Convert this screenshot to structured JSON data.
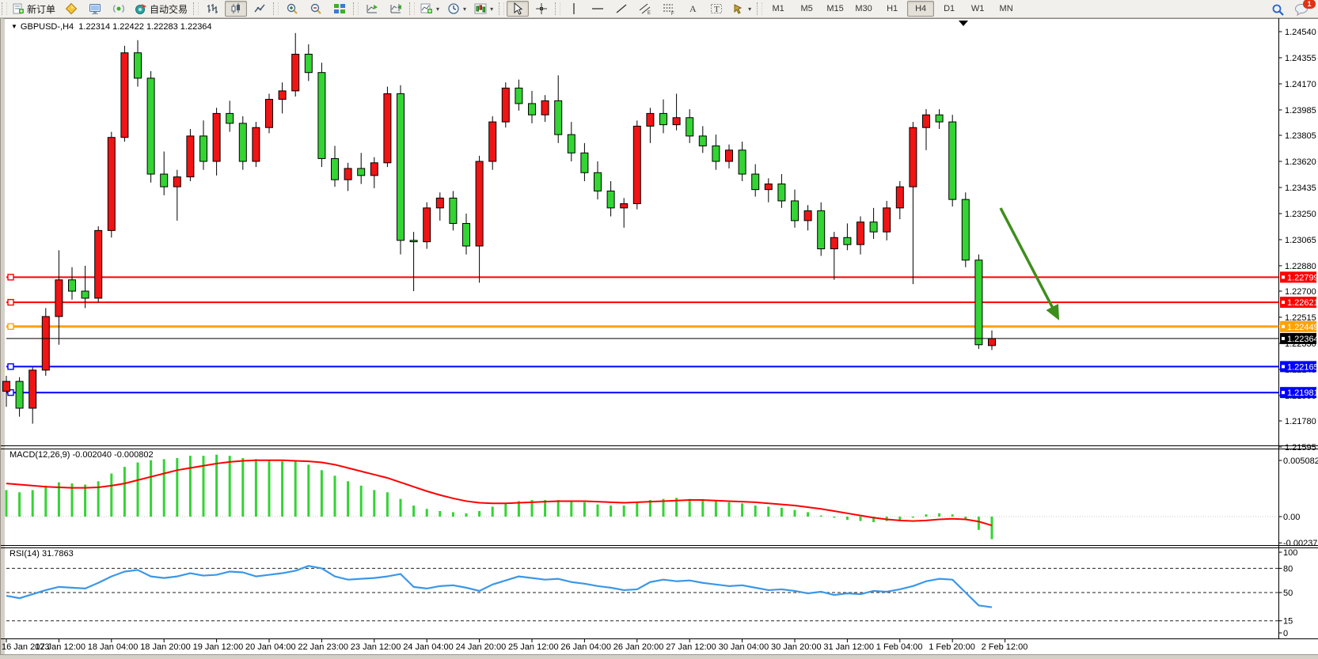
{
  "toolbar": {
    "new_order": "新订单",
    "auto_trading": "自动交易",
    "timeframes": [
      "M1",
      "M5",
      "M15",
      "M30",
      "H1",
      "H4",
      "D1",
      "W1",
      "MN"
    ],
    "active_timeframe": "H4",
    "notification_badge": "1",
    "dropdown_marker": "▾"
  },
  "quote_bar": {
    "dropdown_marker": "▼",
    "symbol": "GBPUSD-,H4",
    "open": "1.22314",
    "high": "1.22422",
    "low": "1.22283",
    "close": "1.22364"
  },
  "colors": {
    "bull": "#f01414",
    "bear": "#33d433",
    "wick": "#000000",
    "macd_hist": "#33d433",
    "macd_signal": "#ff0000",
    "rsi_line": "#3b97e8",
    "hline_red": "#ff0000",
    "hline_orange": "#ffa200",
    "hline_blue": "#0000ff",
    "price_line": "#000000",
    "arrow": "#3e8e1c"
  },
  "chart_data": {
    "type": "candlestick",
    "symbol": "GBPUSD",
    "period": "H4",
    "note": "red body = bullish, green body = bearish (Chinese convention)",
    "price_axis_ticks": [
      "1.24540",
      "1.24355",
      "1.24170",
      "1.23985",
      "1.23805",
      "1.23620",
      "1.23435",
      "1.23250",
      "1.23065",
      "1.22880",
      "1.22700",
      "1.22515",
      "1.22330",
      "1.22145",
      "1.21960",
      "1.21780",
      "1.21595"
    ],
    "price_range": {
      "top": 1.2454,
      "bottom": 1.21595
    },
    "candles": [
      [
        1.2199,
        1.221,
        1.2188,
        1.2206
      ],
      [
        1.2206,
        1.2209,
        1.2181,
        1.2187
      ],
      [
        1.2187,
        1.2216,
        1.2176,
        1.2214
      ],
      [
        1.2214,
        1.2258,
        1.221,
        1.2252
      ],
      [
        1.2252,
        1.2299,
        1.2232,
        1.2278
      ],
      [
        1.2278,
        1.2287,
        1.2264,
        1.227
      ],
      [
        1.227,
        1.2288,
        1.2258,
        1.2265
      ],
      [
        1.2265,
        1.2316,
        1.2262,
        1.2313
      ],
      [
        1.2313,
        1.2383,
        1.2308,
        1.2379
      ],
      [
        1.2379,
        1.2444,
        1.2376,
        1.2439
      ],
      [
        1.2439,
        1.2448,
        1.2415,
        1.2421
      ],
      [
        1.2421,
        1.2426,
        1.2347,
        1.2353
      ],
      [
        1.2353,
        1.2369,
        1.2338,
        1.2344
      ],
      [
        1.2344,
        1.2356,
        1.232,
        1.2351
      ],
      [
        1.2351,
        1.2385,
        1.2348,
        1.238
      ],
      [
        1.238,
        1.2391,
        1.2356,
        1.2362
      ],
      [
        1.2362,
        1.24,
        1.2352,
        1.2396
      ],
      [
        1.2396,
        1.2405,
        1.2383,
        1.2389
      ],
      [
        1.2389,
        1.2394,
        1.2356,
        1.2362
      ],
      [
        1.2362,
        1.239,
        1.2358,
        1.2386
      ],
      [
        1.2386,
        1.241,
        1.2382,
        1.2406
      ],
      [
        1.2406,
        1.2418,
        1.2396,
        1.2412
      ],
      [
        1.2412,
        1.2453,
        1.2408,
        1.2438
      ],
      [
        1.2438,
        1.2445,
        1.2419,
        1.2425
      ],
      [
        1.2425,
        1.2432,
        1.2358,
        1.2364
      ],
      [
        1.2364,
        1.2373,
        1.2344,
        1.2349
      ],
      [
        1.2349,
        1.2361,
        1.2341,
        1.2357
      ],
      [
        1.2357,
        1.2368,
        1.2346,
        1.2352
      ],
      [
        1.2352,
        1.2365,
        1.2343,
        1.2361
      ],
      [
        1.2361,
        1.2415,
        1.2358,
        1.241
      ],
      [
        1.241,
        1.2416,
        1.2296,
        1.2306
      ],
      [
        1.2306,
        1.2312,
        1.227,
        1.2305
      ],
      [
        1.2305,
        1.2333,
        1.23,
        1.2329
      ],
      [
        1.2329,
        1.234,
        1.232,
        1.2336
      ],
      [
        1.2336,
        1.2341,
        1.2313,
        1.2318
      ],
      [
        1.2318,
        1.2325,
        1.2296,
        1.2302
      ],
      [
        1.2302,
        1.2366,
        1.2276,
        1.2362
      ],
      [
        1.2362,
        1.2394,
        1.2356,
        1.239
      ],
      [
        1.239,
        1.2418,
        1.2386,
        1.2414
      ],
      [
        1.2414,
        1.242,
        1.2398,
        1.2403
      ],
      [
        1.2403,
        1.2412,
        1.2389,
        1.2395
      ],
      [
        1.2395,
        1.2409,
        1.239,
        1.2405
      ],
      [
        1.2405,
        1.2423,
        1.2375,
        1.2381
      ],
      [
        1.2381,
        1.239,
        1.2362,
        1.2368
      ],
      [
        1.2368,
        1.2375,
        1.2348,
        1.2354
      ],
      [
        1.2354,
        1.2362,
        1.2335,
        1.2341
      ],
      [
        1.2341,
        1.2348,
        1.2323,
        1.2329
      ],
      [
        1.2329,
        1.2336,
        1.2315,
        1.2332
      ],
      [
        1.2332,
        1.2391,
        1.2328,
        1.2387
      ],
      [
        1.2387,
        1.24,
        1.2375,
        1.2396
      ],
      [
        1.2396,
        1.2406,
        1.2382,
        1.2388
      ],
      [
        1.2388,
        1.241,
        1.2384,
        1.2393
      ],
      [
        1.2393,
        1.2399,
        1.2375,
        1.238
      ],
      [
        1.238,
        1.2387,
        1.2368,
        1.2373
      ],
      [
        1.2373,
        1.2381,
        1.2356,
        1.2362
      ],
      [
        1.2362,
        1.2374,
        1.2357,
        1.237
      ],
      [
        1.237,
        1.2376,
        1.2348,
        1.2353
      ],
      [
        1.2353,
        1.236,
        1.2337,
        1.2342
      ],
      [
        1.2342,
        1.235,
        1.2333,
        1.2346
      ],
      [
        1.2346,
        1.2353,
        1.2329,
        1.2334
      ],
      [
        1.2334,
        1.2342,
        1.2315,
        1.232
      ],
      [
        1.232,
        1.2331,
        1.2313,
        1.2327
      ],
      [
        1.2327,
        1.2333,
        1.2295,
        1.23
      ],
      [
        1.23,
        1.2312,
        1.2278,
        1.2308
      ],
      [
        1.2308,
        1.2318,
        1.2299,
        1.2303
      ],
      [
        1.2303,
        1.2323,
        1.2296,
        1.2319
      ],
      [
        1.2319,
        1.2329,
        1.2307,
        1.2312
      ],
      [
        1.2312,
        1.2334,
        1.2306,
        1.2329
      ],
      [
        1.2329,
        1.2348,
        1.2321,
        1.2344
      ],
      [
        1.2344,
        1.239,
        1.2275,
        1.2386
      ],
      [
        1.2386,
        1.2399,
        1.237,
        1.2395
      ],
      [
        1.2395,
        1.2399,
        1.2385,
        1.239
      ],
      [
        1.239,
        1.2395,
        1.233,
        1.2335
      ],
      [
        1.2335,
        1.234,
        1.2287,
        1.2292
      ],
      [
        1.2292,
        1.2296,
        1.2229,
        1.2232
      ],
      [
        1.22314,
        1.22422,
        1.22283,
        1.22364
      ]
    ],
    "hlines": [
      {
        "price": 1.22799,
        "label": "1.22799",
        "color": "#ff0000",
        "width": 2
      },
      {
        "price": 1.22621,
        "label": "1.22621",
        "color": "#ff0000",
        "width": 2
      },
      {
        "price": 1.22449,
        "label": "1.22449",
        "color": "#ffa200",
        "width": 3
      },
      {
        "price": 1.22165,
        "label": "1.22165",
        "color": "#0000ff",
        "width": 2
      },
      {
        "price": 1.21981,
        "label": "1.21981",
        "color": "#0000ff",
        "width": 2
      }
    ],
    "current_price": {
      "price": 1.22364,
      "label": "1.22364"
    },
    "arrow": {
      "from": [
        1264,
        262
      ],
      "to": [
        1336,
        400
      ],
      "color": "#3e8e1c"
    },
    "macd": {
      "title": "MACD(12,26,9)",
      "value": "-0.002040",
      "signal_value": "-0.000802",
      "axis_labels": [
        {
          "text": "0.005082",
          "value": 0.005082
        },
        {
          "text": "0.00",
          "value": 0
        },
        {
          "text": "-0.002379",
          "value": -0.002379
        }
      ],
      "histogram": [
        0.0024,
        0.0022,
        0.0024,
        0.0028,
        0.0031,
        0.003,
        0.0029,
        0.0032,
        0.0039,
        0.0045,
        0.0049,
        0.0051,
        0.0052,
        0.0053,
        0.0055,
        0.0055,
        0.0056,
        0.0055,
        0.0053,
        0.0052,
        0.0051,
        0.005,
        0.005,
        0.0047,
        0.0042,
        0.0037,
        0.0032,
        0.0028,
        0.0024,
        0.0022,
        0.0016,
        0.001,
        0.0007,
        0.0005,
        0.0004,
        0.0003,
        0.0005,
        0.0009,
        0.0012,
        0.0014,
        0.0015,
        0.0015,
        0.0015,
        0.0014,
        0.0013,
        0.0011,
        0.001,
        0.001,
        0.0013,
        0.0015,
        0.0016,
        0.0017,
        0.0016,
        0.0015,
        0.0014,
        0.0013,
        0.0012,
        0.001,
        0.0009,
        0.0008,
        0.0006,
        0.0004,
        0.0001,
        -0.0001,
        -0.0003,
        -0.0004,
        -0.0005,
        -0.0004,
        -0.0003,
        -0.0001,
        0.0002,
        0.0003,
        0.0002,
        -0.0003,
        -0.0012,
        -0.00204
      ],
      "signal": [
        0.003,
        0.0029,
        0.0028,
        0.0027,
        0.00265,
        0.0026,
        0.0026,
        0.00265,
        0.0028,
        0.003,
        0.0033,
        0.0036,
        0.0039,
        0.0042,
        0.0044,
        0.0046,
        0.0048,
        0.00495,
        0.00505,
        0.0051,
        0.0051,
        0.0051,
        0.00505,
        0.005,
        0.0049,
        0.0047,
        0.0044,
        0.0041,
        0.0038,
        0.0035,
        0.0031,
        0.0027,
        0.0023,
        0.00195,
        0.00165,
        0.0014,
        0.00125,
        0.0012,
        0.0012,
        0.00125,
        0.0013,
        0.00135,
        0.0014,
        0.0014,
        0.0014,
        0.00135,
        0.0013,
        0.00125,
        0.0013,
        0.00135,
        0.0014,
        0.00145,
        0.0015,
        0.0015,
        0.00145,
        0.0014,
        0.00135,
        0.0013,
        0.0012,
        0.0011,
        0.001,
        0.00085,
        0.0007,
        0.0005,
        0.0003,
        0.0001,
        -0.0001,
        -0.00025,
        -0.00035,
        -0.0004,
        -0.00035,
        -0.00025,
        -0.0002,
        -0.00025,
        -0.00045,
        -0.000802
      ]
    },
    "rsi": {
      "title": "RSI(14)",
      "value": "31.7863",
      "levels": [
        80,
        50,
        15
      ],
      "axis_labels": [
        {
          "text": "100",
          "value": 100
        },
        {
          "text": "80",
          "value": 80
        },
        {
          "text": "50",
          "value": 50
        },
        {
          "text": "15",
          "value": 15
        },
        {
          "text": "0",
          "value": 0
        }
      ],
      "series": [
        46,
        43,
        48,
        53,
        57,
        56,
        55,
        62,
        70,
        76,
        78,
        70,
        68,
        70,
        74,
        71,
        72,
        76,
        75,
        70,
        72,
        74,
        77,
        83,
        80,
        70,
        66,
        67,
        68,
        70,
        73,
        57,
        55,
        58,
        59,
        56,
        52,
        60,
        65,
        70,
        68,
        66,
        67,
        63,
        61,
        58,
        56,
        53,
        54,
        63,
        66,
        64,
        65,
        62,
        60,
        58,
        59,
        56,
        53,
        54,
        52,
        49,
        51,
        47,
        49,
        48,
        52,
        51,
        54,
        58,
        64,
        67,
        66,
        50,
        34,
        31.79
      ],
      "grid_dashed": true
    },
    "timeline": [
      "16 Jan 2023",
      "17 Jan 12:00",
      "18 Jan 04:00",
      "18 Jan 20:00",
      "19 Jan 12:00",
      "20 Jan 04:00",
      "22 Jan 23:00",
      "23 Jan 12:00",
      "24 Jan 04:00",
      "24 Jan 20:00",
      "25 Jan 12:00",
      "26 Jan 04:00",
      "26 Jan 20:00",
      "27 Jan 12:00",
      "30 Jan 04:00",
      "30 Jan 20:00",
      "31 Jan 12:00",
      "1 Feb 04:00",
      "1 Feb 20:00",
      "2 Feb 12:00"
    ]
  }
}
